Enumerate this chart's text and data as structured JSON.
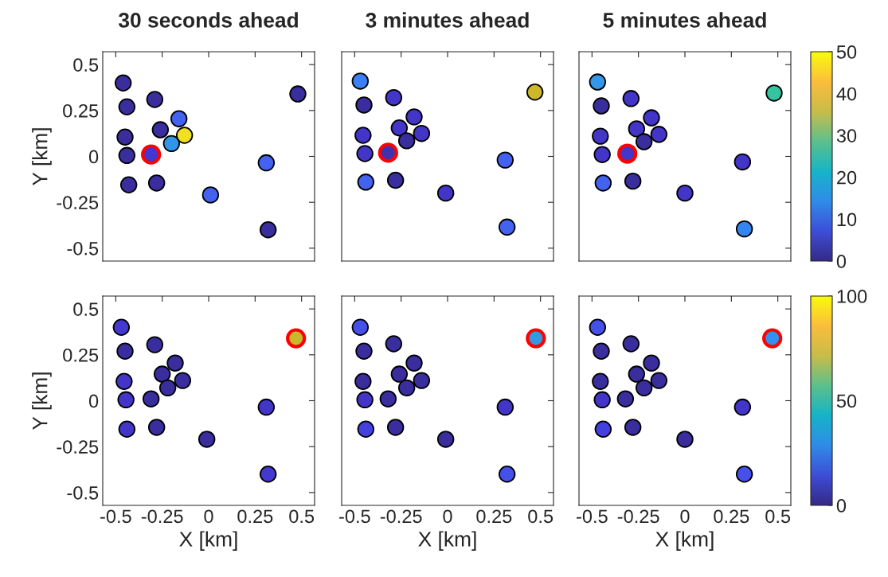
{
  "chart_data": [
    {
      "type": "scatter",
      "title": "30 seconds ahead",
      "ylabel": "Y [km]",
      "xlim": [
        -0.57,
        0.57
      ],
      "ylim": [
        -0.57,
        0.57
      ],
      "xticks": [
        -0.5,
        -0.25,
        0,
        0.25,
        0.5
      ],
      "yticks": [
        -0.5,
        -0.25,
        0,
        0.25,
        0.5
      ],
      "tick_labels": "y",
      "marker": "circle",
      "series": [
        {
          "x": [
            -0.46,
            -0.44,
            -0.45,
            -0.44,
            -0.43,
            -0.29,
            -0.26,
            -0.2,
            -0.16,
            -0.13,
            -0.28,
            0.01,
            0.31,
            0.32,
            0.48
          ],
          "values": [
            0.4,
            0.27,
            0.105,
            0.005,
            -0.155,
            0.31,
            0.145,
            0.07,
            0.205,
            0.115,
            -0.145,
            -0.21,
            -0.035,
            -0.4,
            0.34
          ],
          "colors": [
            "#3a2e9e",
            "#3a2e9e",
            "#3a2e9e",
            "#3a2e9e",
            "#3a2e9e",
            "#3a2e9e",
            "#3a2e9e",
            "#2f96e8",
            "#4462f0",
            "#f0e020",
            "#3a2e9e",
            "#4462f0",
            "#4462f0",
            "#3a2e9e",
            "#3a2e9e"
          ]
        },
        {
          "x": [
            -0.31
          ],
          "values": [
            0.01
          ],
          "colors": [
            "#4038d0"
          ],
          "color": "#ff0000"
        }
      ]
    },
    {
      "type": "scatter",
      "title": "3 minutes ahead",
      "xlim": [
        -0.57,
        0.57
      ],
      "ylim": [
        -0.57,
        0.57
      ],
      "xticks": [
        -0.5,
        -0.25,
        0,
        0.25,
        0.5
      ],
      "yticks": [
        -0.5,
        -0.25,
        0,
        0.25,
        0.5
      ],
      "tick_labels": false,
      "marker": "circle",
      "series": [
        {
          "x": [
            -0.47,
            -0.45,
            -0.455,
            -0.445,
            -0.44,
            -0.29,
            -0.26,
            -0.22,
            -0.18,
            -0.14,
            -0.28,
            -0.01,
            0.31,
            0.32,
            0.47
          ],
          "values": [
            0.41,
            0.28,
            0.115,
            0.015,
            -0.14,
            0.32,
            0.155,
            0.085,
            0.215,
            0.125,
            -0.13,
            -0.2,
            -0.02,
            -0.385,
            0.35
          ],
          "colors": [
            "#3d80f5",
            "#3a2e9e",
            "#4335c8",
            "#4335c8",
            "#4462f0",
            "#4335c8",
            "#4335c8",
            "#3a2e9e",
            "#4335c8",
            "#4335c8",
            "#3a2e9e",
            "#4335c8",
            "#4462f0",
            "#4462f0",
            "#cdb82a"
          ]
        },
        {
          "x": [
            -0.32
          ],
          "values": [
            0.02
          ],
          "colors": [
            "#3e32b0"
          ],
          "color": "#ff0000"
        }
      ]
    },
    {
      "type": "scatter",
      "title": "5 minutes ahead",
      "xlim": [
        -0.57,
        0.57
      ],
      "ylim": [
        -0.57,
        0.57
      ],
      "xticks": [
        -0.5,
        -0.25,
        0,
        0.25,
        0.5
      ],
      "yticks": [
        -0.5,
        -0.25,
        0,
        0.25,
        0.5
      ],
      "tick_labels": false,
      "clim": [
        0,
        50
      ],
      "cticks": [
        0,
        10,
        20,
        30,
        40,
        50
      ],
      "marker": "circle",
      "series": [
        {
          "x": [
            -0.47,
            -0.45,
            -0.455,
            -0.445,
            -0.44,
            -0.29,
            -0.26,
            -0.22,
            -0.18,
            -0.14,
            -0.28,
            0.0,
            0.31,
            0.32,
            0.48
          ],
          "values": [
            0.405,
            0.275,
            0.11,
            0.01,
            -0.145,
            0.315,
            0.15,
            0.08,
            0.21,
            0.12,
            -0.135,
            -0.2,
            -0.03,
            -0.395,
            0.345
          ],
          "colors": [
            "#3396e8",
            "#3a2e9e",
            "#4335c8",
            "#4335c8",
            "#4462f0",
            "#4335c8",
            "#4335c8",
            "#3a2e9e",
            "#4335c8",
            "#4335c8",
            "#3a2e9e",
            "#4335c8",
            "#4335c8",
            "#3385f0",
            "#35c49e"
          ]
        },
        {
          "x": [
            -0.31
          ],
          "values": [
            0.015
          ],
          "colors": [
            "#4336c8"
          ],
          "color": "#ff0000"
        }
      ]
    },
    {
      "type": "scatter",
      "xlabel": "X [km]",
      "ylabel": "Y [km]",
      "xlim": [
        -0.57,
        0.57
      ],
      "ylim": [
        -0.57,
        0.57
      ],
      "xticks": [
        -0.5,
        -0.25,
        0,
        0.25,
        0.5
      ],
      "yticks": [
        -0.5,
        -0.25,
        0,
        0.25,
        0.5
      ],
      "marker": "circle",
      "series": [
        {
          "x": [
            -0.47,
            -0.45,
            -0.455,
            -0.445,
            -0.44,
            -0.31,
            -0.29,
            -0.25,
            -0.22,
            -0.18,
            -0.14,
            -0.28,
            -0.01,
            0.31,
            0.32
          ],
          "values": [
            0.4,
            0.27,
            0.105,
            0.005,
            -0.155,
            0.01,
            0.305,
            0.145,
            0.07,
            0.205,
            0.11,
            -0.145,
            -0.21,
            -0.035,
            -0.4
          ],
          "colors": [
            "#4338d0",
            "#3a2e9e",
            "#4335c8",
            "#4335c8",
            "#4335c8",
            "#3a2e9e",
            "#3a2e9e",
            "#3a2e9e",
            "#3a2e9e",
            "#3a2e9e",
            "#3a2e9e",
            "#3a2e9e",
            "#3a2e9e",
            "#4335c8",
            "#4338d0"
          ]
        },
        {
          "x": [
            0.47
          ],
          "values": [
            0.34
          ],
          "colors": [
            "#c8b82a"
          ],
          "color": "#ff0000"
        }
      ]
    },
    {
      "type": "scatter",
      "xlabel": "X [km]",
      "xlim": [
        -0.57,
        0.57
      ],
      "ylim": [
        -0.57,
        0.57
      ],
      "xticks": [
        -0.5,
        -0.25,
        0,
        0.25,
        0.5
      ],
      "yticks": [
        -0.5,
        -0.25,
        0,
        0.25,
        0.5
      ],
      "tick_labels": "x",
      "marker": "circle",
      "series": [
        {
          "x": [
            -0.47,
            -0.45,
            -0.455,
            -0.445,
            -0.44,
            -0.32,
            -0.29,
            -0.26,
            -0.22,
            -0.18,
            -0.14,
            -0.28,
            -0.01,
            0.31,
            0.32
          ],
          "values": [
            0.4,
            0.27,
            0.105,
            0.005,
            -0.155,
            0.01,
            0.31,
            0.145,
            0.07,
            0.205,
            0.11,
            -0.145,
            -0.21,
            -0.035,
            -0.4
          ],
          "colors": [
            "#4450e8",
            "#3a2e9e",
            "#3a2e9e",
            "#4335c8",
            "#4440e0",
            "#3a2e9e",
            "#3a2e9e",
            "#3a2e9e",
            "#3a2e9e",
            "#3a2e9e",
            "#3a2e9e",
            "#3a2e9e",
            "#3a2e9e",
            "#4335c8",
            "#4450e8"
          ]
        },
        {
          "x": [
            0.475
          ],
          "values": [
            0.34
          ],
          "colors": [
            "#3399e0"
          ],
          "color": "#ff0000"
        }
      ]
    },
    {
      "type": "scatter",
      "xlabel": "X [km]",
      "xlim": [
        -0.57,
        0.57
      ],
      "ylim": [
        -0.57,
        0.57
      ],
      "xticks": [
        -0.5,
        -0.25,
        0,
        0.25,
        0.5
      ],
      "yticks": [
        -0.5,
        -0.25,
        0,
        0.25,
        0.5
      ],
      "tick_labels": "x",
      "clim": [
        0,
        100
      ],
      "cticks": [
        0,
        50,
        100
      ],
      "marker": "circle",
      "series": [
        {
          "x": [
            -0.47,
            -0.45,
            -0.455,
            -0.445,
            -0.44,
            -0.32,
            -0.29,
            -0.26,
            -0.22,
            -0.18,
            -0.14,
            -0.28,
            0.0,
            0.31,
            0.32
          ],
          "values": [
            0.4,
            0.27,
            0.105,
            0.005,
            -0.155,
            0.01,
            0.31,
            0.145,
            0.07,
            0.205,
            0.11,
            -0.145,
            -0.21,
            -0.035,
            -0.4
          ],
          "colors": [
            "#4450e8",
            "#3a2e9e",
            "#3a2e9e",
            "#4335c8",
            "#4440e0",
            "#3a2e9e",
            "#3a2e9e",
            "#3a2e9e",
            "#3a2e9e",
            "#3a2e9e",
            "#3a2e9e",
            "#3a2e9e",
            "#3a2e9e",
            "#4335c8",
            "#4450e8"
          ]
        },
        {
          "x": [
            0.47
          ],
          "values": [
            0.34
          ],
          "colors": [
            "#3390f0"
          ],
          "color": "#ff0000"
        }
      ]
    }
  ]
}
